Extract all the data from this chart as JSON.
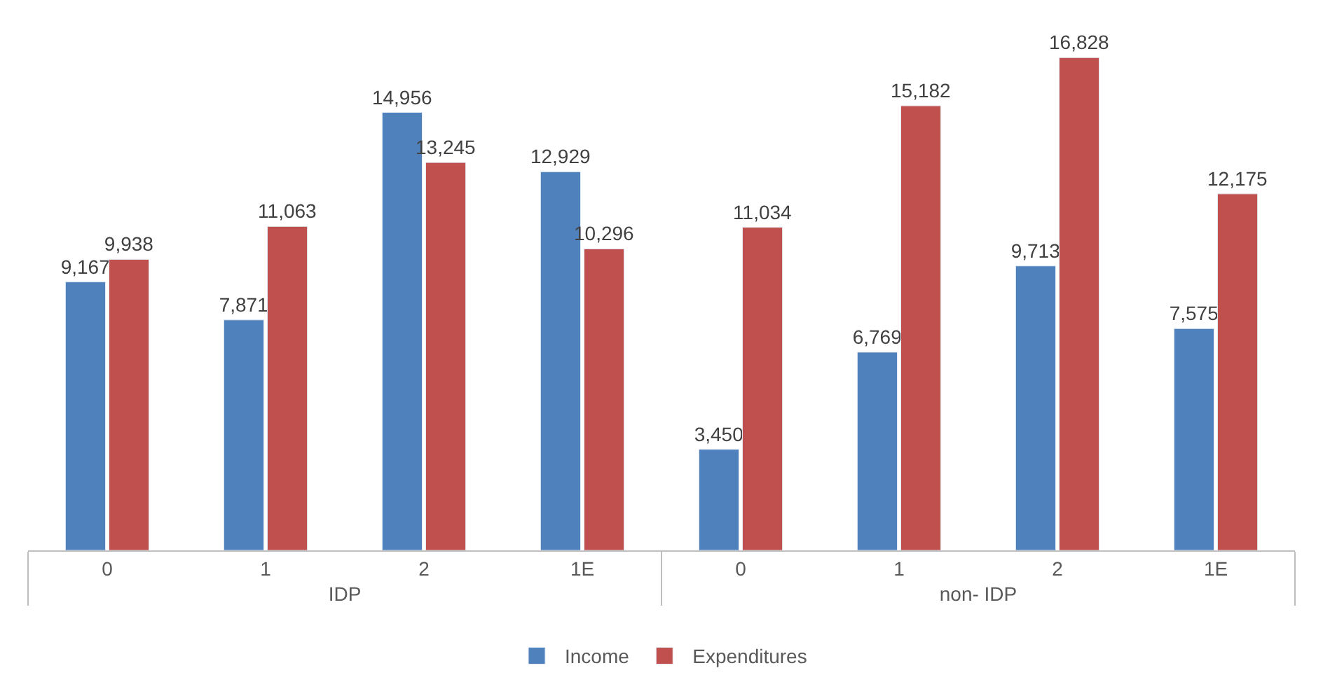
{
  "chart_data": {
    "type": "bar",
    "categories": [
      "0",
      "1",
      "2",
      "1E",
      "0",
      "1",
      "2",
      "1E"
    ],
    "annotations": [
      "IDP",
      "non- IDP"
    ],
    "series": [
      {
        "name": "Income",
        "color": "#4f81bd",
        "values": [
          9167,
          7871,
          14956,
          12929,
          3450,
          6769,
          9713,
          7575
        ],
        "value_labels": [
          "9,167",
          "7,871",
          "14,956",
          "12,929",
          "3,450",
          "6,769",
          "9,713",
          "7,575"
        ]
      },
      {
        "name": "Expenditures",
        "color": "#c0504d",
        "values": [
          9938,
          11063,
          13245,
          10296,
          11034,
          15182,
          16828,
          12175
        ],
        "value_labels": [
          "9,938",
          "11,063",
          "13,245",
          "10,296",
          "11,034",
          "15,182",
          "16,828",
          "12,175"
        ]
      }
    ],
    "legend": "bottom"
  }
}
